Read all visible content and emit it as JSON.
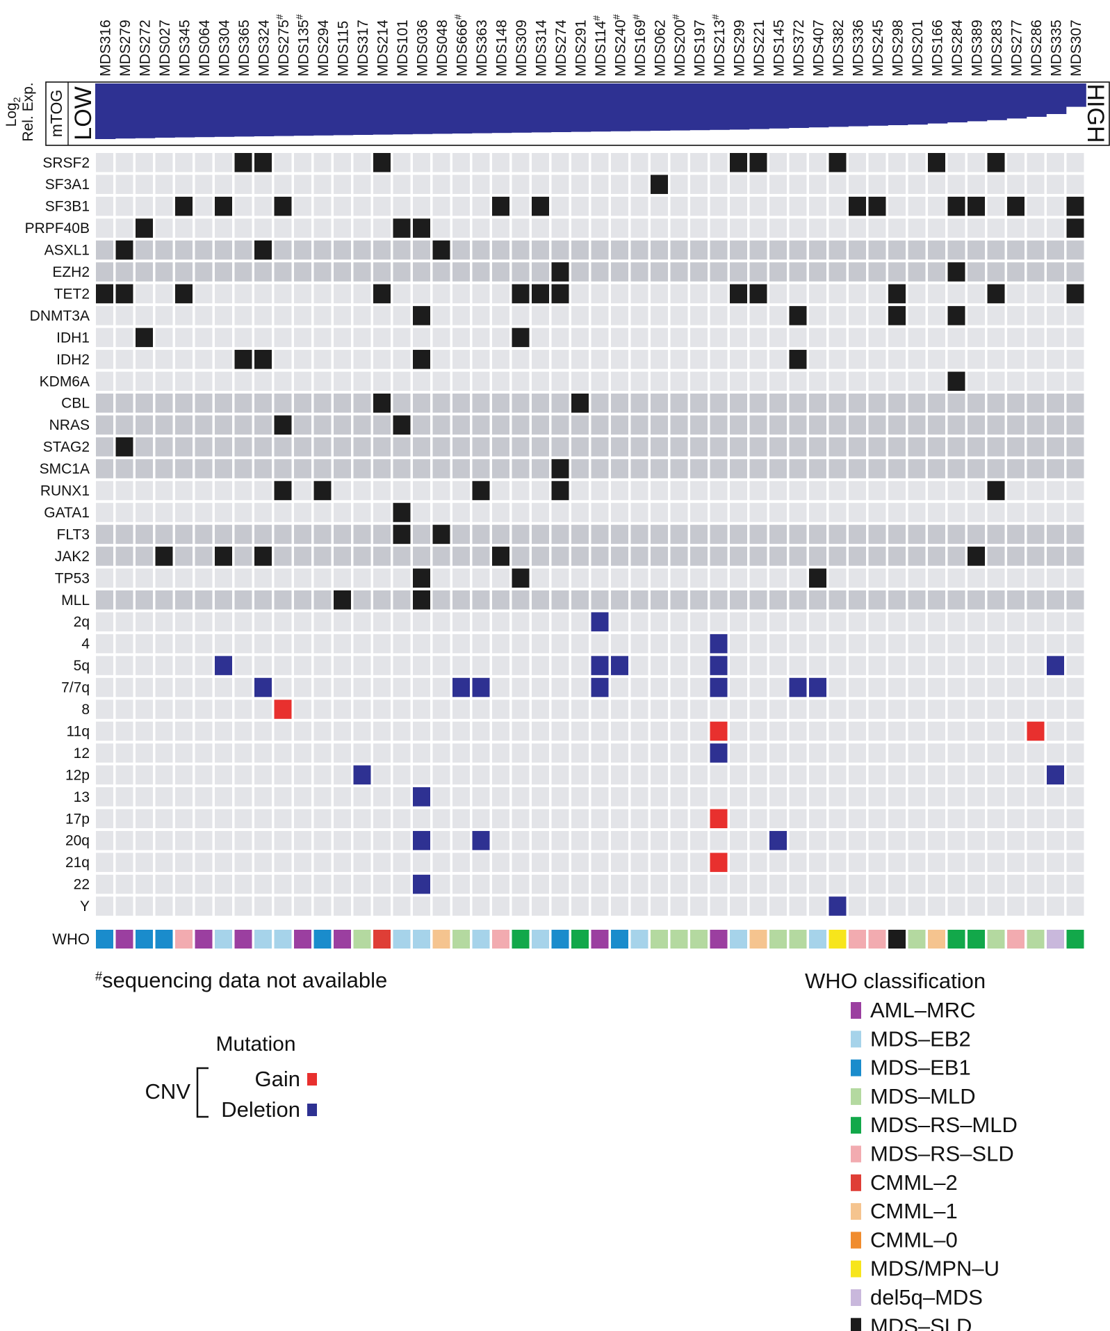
{
  "chart_data": {
    "type": "heatmap",
    "samples": [
      {
        "id": "MDS316",
        "hash": false,
        "who": "MDS-EB1"
      },
      {
        "id": "MDS279",
        "hash": false,
        "who": "AML-MRC"
      },
      {
        "id": "MDS272",
        "hash": false,
        "who": "MDS-EB1"
      },
      {
        "id": "MDS027",
        "hash": false,
        "who": "MDS-EB1"
      },
      {
        "id": "MDS345",
        "hash": false,
        "who": "MDS-RS-SLD"
      },
      {
        "id": "MDS064",
        "hash": false,
        "who": "AML-MRC"
      },
      {
        "id": "MDS304",
        "hash": false,
        "who": "MDS-EB2"
      },
      {
        "id": "MDS365",
        "hash": false,
        "who": "AML-MRC"
      },
      {
        "id": "MDS324",
        "hash": false,
        "who": "MDS-EB2"
      },
      {
        "id": "MDS275",
        "hash": true,
        "who": "MDS-EB2"
      },
      {
        "id": "MDS135",
        "hash": true,
        "who": "AML-MRC"
      },
      {
        "id": "MDS294",
        "hash": false,
        "who": "MDS-EB1"
      },
      {
        "id": "MDS115",
        "hash": false,
        "who": "AML-MRC"
      },
      {
        "id": "MDS317",
        "hash": false,
        "who": "MDS-MLD"
      },
      {
        "id": "MDS214",
        "hash": false,
        "who": "CMML-2"
      },
      {
        "id": "MDS101",
        "hash": false,
        "who": "MDS-EB2"
      },
      {
        "id": "MDS036",
        "hash": false,
        "who": "MDS-EB2"
      },
      {
        "id": "MDS048",
        "hash": false,
        "who": "CMML-1"
      },
      {
        "id": "MDS666",
        "hash": true,
        "who": "MDS-MLD"
      },
      {
        "id": "MDS363",
        "hash": false,
        "who": "MDS-EB2"
      },
      {
        "id": "MDS148",
        "hash": false,
        "who": "MDS-RS-SLD"
      },
      {
        "id": "MDS309",
        "hash": false,
        "who": "MDS-RS-MLD"
      },
      {
        "id": "MDS314",
        "hash": false,
        "who": "MDS-EB2"
      },
      {
        "id": "MDS274",
        "hash": false,
        "who": "MDS-EB1"
      },
      {
        "id": "MDS291",
        "hash": false,
        "who": "MDS-RS-MLD"
      },
      {
        "id": "MDS114",
        "hash": true,
        "who": "AML-MRC"
      },
      {
        "id": "MDS240",
        "hash": true,
        "who": "MDS-EB1"
      },
      {
        "id": "MDS169",
        "hash": true,
        "who": "MDS-EB2"
      },
      {
        "id": "MDS062",
        "hash": false,
        "who": "MDS-MLD"
      },
      {
        "id": "MDS200",
        "hash": true,
        "who": "MDS-MLD"
      },
      {
        "id": "MDS197",
        "hash": false,
        "who": "MDS-MLD"
      },
      {
        "id": "MDS213",
        "hash": true,
        "who": "AML-MRC"
      },
      {
        "id": "MDS299",
        "hash": false,
        "who": "MDS-EB2"
      },
      {
        "id": "MDS221",
        "hash": false,
        "who": "CMML-1"
      },
      {
        "id": "MDS145",
        "hash": false,
        "who": "MDS-MLD"
      },
      {
        "id": "MDS372",
        "hash": false,
        "who": "MDS-MLD"
      },
      {
        "id": "MDS407",
        "hash": false,
        "who": "MDS-EB2"
      },
      {
        "id": "MDS382",
        "hash": false,
        "who": "MDS/MPN-U"
      },
      {
        "id": "MDS336",
        "hash": false,
        "who": "MDS-RS-SLD"
      },
      {
        "id": "MDS245",
        "hash": false,
        "who": "MDS-RS-SLD"
      },
      {
        "id": "MDS298",
        "hash": false,
        "who": "MDS-SLD"
      },
      {
        "id": "MDS201",
        "hash": false,
        "who": "MDS-MLD"
      },
      {
        "id": "MDS166",
        "hash": false,
        "who": "CMML-1"
      },
      {
        "id": "MDS284",
        "hash": false,
        "who": "MDS-RS-MLD"
      },
      {
        "id": "MDS389",
        "hash": false,
        "who": "MDS-RS-MLD"
      },
      {
        "id": "MDS283",
        "hash": false,
        "who": "MDS-MLD"
      },
      {
        "id": "MDS277",
        "hash": false,
        "who": "MDS-RS-SLD"
      },
      {
        "id": "MDS286",
        "hash": false,
        "who": "MDS-MLD"
      },
      {
        "id": "MDS335",
        "hash": false,
        "who": "del5q-MDS"
      },
      {
        "id": "MDS307",
        "hash": false,
        "who": "MDS-RS-MLD"
      }
    ],
    "expression": [
      1.0,
      0.99,
      0.985,
      0.975,
      0.97,
      0.965,
      0.96,
      0.955,
      0.95,
      0.945,
      0.94,
      0.935,
      0.93,
      0.925,
      0.92,
      0.915,
      0.91,
      0.905,
      0.9,
      0.895,
      0.89,
      0.885,
      0.88,
      0.875,
      0.87,
      0.865,
      0.86,
      0.855,
      0.85,
      0.845,
      0.84,
      0.835,
      0.83,
      0.82,
      0.81,
      0.8,
      0.79,
      0.78,
      0.77,
      0.76,
      0.75,
      0.74,
      0.72,
      0.7,
      0.68,
      0.66,
      0.63,
      0.6,
      0.55,
      0.42
    ],
    "expression_label_top": "Log",
    "expression_label_sub": "2",
    "expression_label_bottom": "Rel. Exp.",
    "gene_name": "mTOG",
    "low_label": "LOW",
    "high_label": "HIGH",
    "rows": [
      {
        "name": "SRSF2",
        "kind": "mut",
        "shade": "light"
      },
      {
        "name": "SF3A1",
        "kind": "mut",
        "shade": "light"
      },
      {
        "name": "SF3B1",
        "kind": "mut",
        "shade": "light"
      },
      {
        "name": "PRPF40B",
        "kind": "mut",
        "shade": "light"
      },
      {
        "name": "ASXL1",
        "kind": "mut",
        "shade": "dark"
      },
      {
        "name": "EZH2",
        "kind": "mut",
        "shade": "dark"
      },
      {
        "name": "TET2",
        "kind": "mut",
        "shade": "light"
      },
      {
        "name": "DNMT3A",
        "kind": "mut",
        "shade": "light"
      },
      {
        "name": "IDH1",
        "kind": "mut",
        "shade": "light"
      },
      {
        "name": "IDH2",
        "kind": "mut",
        "shade": "light"
      },
      {
        "name": "KDM6A",
        "kind": "mut",
        "shade": "light"
      },
      {
        "name": "CBL",
        "kind": "mut",
        "shade": "dark"
      },
      {
        "name": "NRAS",
        "kind": "mut",
        "shade": "dark"
      },
      {
        "name": "STAG2",
        "kind": "mut",
        "shade": "dark"
      },
      {
        "name": "SMC1A",
        "kind": "mut",
        "shade": "dark"
      },
      {
        "name": "RUNX1",
        "kind": "mut",
        "shade": "light"
      },
      {
        "name": "GATA1",
        "kind": "mut",
        "shade": "light"
      },
      {
        "name": "FLT3",
        "kind": "mut",
        "shade": "dark"
      },
      {
        "name": "JAK2",
        "kind": "mut",
        "shade": "dark"
      },
      {
        "name": "TP53",
        "kind": "mut",
        "shade": "light"
      },
      {
        "name": "MLL",
        "kind": "mut",
        "shade": "dark"
      },
      {
        "name": "2q",
        "kind": "cnv",
        "shade": "light"
      },
      {
        "name": "4",
        "kind": "cnv",
        "shade": "light"
      },
      {
        "name": "5q",
        "kind": "cnv",
        "shade": "light"
      },
      {
        "name": "7/7q",
        "kind": "cnv",
        "shade": "light"
      },
      {
        "name": "8",
        "kind": "cnv",
        "shade": "light"
      },
      {
        "name": "11q",
        "kind": "cnv",
        "shade": "light"
      },
      {
        "name": "12",
        "kind": "cnv",
        "shade": "light"
      },
      {
        "name": "12p",
        "kind": "cnv",
        "shade": "light"
      },
      {
        "name": "13",
        "kind": "cnv",
        "shade": "light"
      },
      {
        "name": "17p",
        "kind": "cnv",
        "shade": "light"
      },
      {
        "name": "20q",
        "kind": "cnv",
        "shade": "light"
      },
      {
        "name": "21q",
        "kind": "cnv",
        "shade": "light"
      },
      {
        "name": "22",
        "kind": "cnv",
        "shade": "light"
      },
      {
        "name": "Y",
        "kind": "cnv",
        "shade": "light"
      }
    ],
    "mutations": [
      {
        "row": "SRSF2",
        "samples": [
          "MDS365",
          "MDS324",
          "MDS214",
          "MDS299",
          "MDS221",
          "MDS382",
          "MDS166",
          "MDS283"
        ]
      },
      {
        "row": "SF3A1",
        "samples": [
          "MDS062"
        ]
      },
      {
        "row": "SF3B1",
        "samples": [
          "MDS345",
          "MDS304",
          "MDS275",
          "MDS148",
          "MDS314",
          "MDS336",
          "MDS245",
          "MDS284",
          "MDS389",
          "MDS277",
          "MDS307"
        ]
      },
      {
        "row": "PRPF40B",
        "samples": [
          "MDS272",
          "MDS101",
          "MDS036",
          "MDS307"
        ]
      },
      {
        "row": "ASXL1",
        "samples": [
          "MDS279",
          "MDS324",
          "MDS048"
        ]
      },
      {
        "row": "EZH2",
        "samples": [
          "MDS274",
          "MDS284"
        ]
      },
      {
        "row": "TET2",
        "samples": [
          "MDS316",
          "MDS279",
          "MDS345",
          "MDS214",
          "MDS309",
          "MDS314",
          "MDS274",
          "MDS299",
          "MDS221",
          "MDS298",
          "MDS283",
          "MDS307"
        ]
      },
      {
        "row": "DNMT3A",
        "samples": [
          "MDS036",
          "MDS372",
          "MDS298",
          "MDS284"
        ]
      },
      {
        "row": "IDH1",
        "samples": [
          "MDS272",
          "MDS309"
        ]
      },
      {
        "row": "IDH2",
        "samples": [
          "MDS365",
          "MDS324",
          "MDS036",
          "MDS372"
        ]
      },
      {
        "row": "KDM6A",
        "samples": [
          "MDS284"
        ]
      },
      {
        "row": "CBL",
        "samples": [
          "MDS214",
          "MDS291"
        ]
      },
      {
        "row": "NRAS",
        "samples": [
          "MDS275",
          "MDS101"
        ]
      },
      {
        "row": "STAG2",
        "samples": [
          "MDS279"
        ]
      },
      {
        "row": "SMC1A",
        "samples": [
          "MDS274"
        ]
      },
      {
        "row": "RUNX1",
        "samples": [
          "MDS275",
          "MDS294",
          "MDS363",
          "MDS274",
          "MDS283"
        ]
      },
      {
        "row": "GATA1",
        "samples": [
          "MDS101"
        ]
      },
      {
        "row": "FLT3",
        "samples": [
          "MDS101",
          "MDS048"
        ]
      },
      {
        "row": "JAK2",
        "samples": [
          "MDS027",
          "MDS304",
          "MDS324",
          "MDS148",
          "MDS389"
        ]
      },
      {
        "row": "TP53",
        "samples": [
          "MDS036",
          "MDS309",
          "MDS407"
        ]
      },
      {
        "row": "MLL",
        "samples": [
          "MDS115",
          "MDS036"
        ]
      }
    ],
    "cnv": [
      {
        "row": "2q",
        "deletion": [
          "MDS114"
        ],
        "gain": []
      },
      {
        "row": "4",
        "deletion": [
          "MDS213"
        ],
        "gain": []
      },
      {
        "row": "5q",
        "deletion": [
          "MDS304",
          "MDS114",
          "MDS240",
          "MDS213",
          "MDS335"
        ],
        "gain": []
      },
      {
        "row": "7/7q",
        "deletion": [
          "MDS324",
          "MDS666",
          "MDS363",
          "MDS114",
          "MDS213",
          "MDS372",
          "MDS407"
        ],
        "gain": []
      },
      {
        "row": "8",
        "deletion": [],
        "gain": [
          "MDS275"
        ]
      },
      {
        "row": "11q",
        "deletion": [],
        "gain": [
          "MDS213",
          "MDS286"
        ]
      },
      {
        "row": "12",
        "deletion": [
          "MDS213"
        ],
        "gain": []
      },
      {
        "row": "12p",
        "deletion": [
          "MDS317",
          "MDS335"
        ],
        "gain": []
      },
      {
        "row": "13",
        "deletion": [
          "MDS036"
        ],
        "gain": []
      },
      {
        "row": "17p",
        "deletion": [],
        "gain": [
          "MDS213"
        ]
      },
      {
        "row": "20q",
        "deletion": [
          "MDS036",
          "MDS363",
          "MDS145"
        ],
        "gain": []
      },
      {
        "row": "21q",
        "deletion": [],
        "gain": [
          "MDS213"
        ]
      },
      {
        "row": "22",
        "deletion": [
          "MDS036"
        ],
        "gain": []
      },
      {
        "row": "Y",
        "deletion": [
          "MDS382"
        ],
        "gain": []
      }
    ],
    "who_row_label": "WHO",
    "who_classes": [
      {
        "name": "AML–MRC",
        "key": "AML-MRC",
        "color": "#9b3fa0"
      },
      {
        "name": "MDS–EB2",
        "key": "MDS-EB2",
        "color": "#a6d3ea"
      },
      {
        "name": "MDS–EB1",
        "key": "MDS-EB1",
        "color": "#1a8ccc"
      },
      {
        "name": "MDS–MLD",
        "key": "MDS-MLD",
        "color": "#b4d9a0"
      },
      {
        "name": "MDS–RS–MLD",
        "key": "MDS-RS-MLD",
        "color": "#12a84a"
      },
      {
        "name": "MDS–RS–SLD",
        "key": "MDS-RS-SLD",
        "color": "#f2abb0"
      },
      {
        "name": "CMML–2",
        "key": "CMML-2",
        "color": "#df3e36"
      },
      {
        "name": "CMML–1",
        "key": "CMML-1",
        "color": "#f5c48f"
      },
      {
        "name": "CMML–0",
        "key": "CMML-0",
        "color": "#f08c2e"
      },
      {
        "name": "MDS/MPN–U",
        "key": "MDS/MPN-U",
        "color": "#f7e51c"
      },
      {
        "name": "del5q–MDS",
        "key": "del5q-MDS",
        "color": "#c9b8dc"
      },
      {
        "name": "MDS–SLD",
        "key": "MDS-SLD",
        "color": "#1b1b1b"
      }
    ],
    "colors": {
      "mutation": "#1c1c1c",
      "gain": "#e8302e",
      "deletion": "#2e3192",
      "expression_bar": "#2e3192",
      "cell_light": "#e3e4e8",
      "cell_dark": "#c6c8cf"
    }
  },
  "footnote": {
    "hash": "#",
    "text": "sequencing data not available"
  },
  "legend": {
    "mutation_label": "Mutation",
    "cnv_label": "CNV",
    "gain_label": "Gain",
    "deletion_label": "Deletion",
    "who_title": "WHO classification"
  }
}
